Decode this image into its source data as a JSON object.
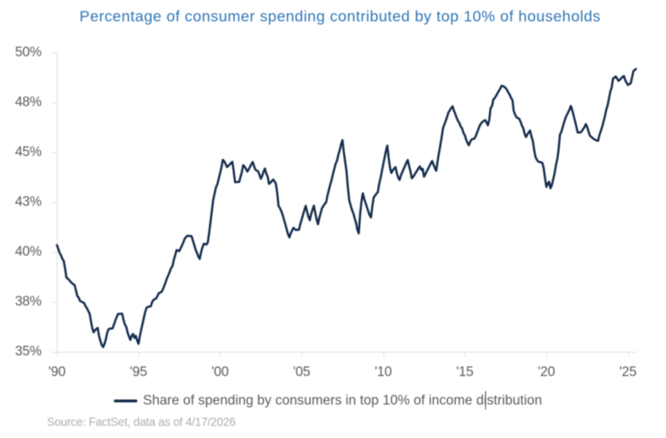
{
  "chart_data": {
    "type": "line",
    "title": "Percentage of consumer spending contributed by top 10% of households",
    "xlabel": "",
    "ylabel": "",
    "grid": false,
    "x_axis": {
      "range": [
        1990,
        2025.5
      ],
      "ticks": [
        {
          "t": 1990,
          "label": "'90"
        },
        {
          "t": 1995,
          "label": "'95"
        },
        {
          "t": 2000,
          "label": "'00"
        },
        {
          "t": 2005,
          "label": "'05"
        },
        {
          "t": 2010,
          "label": "'10"
        },
        {
          "t": 2015,
          "label": "'15"
        },
        {
          "t": 2020,
          "label": "'20"
        },
        {
          "t": 2025,
          "label": "'25"
        }
      ]
    },
    "y_axis": {
      "range": [
        35,
        50
      ],
      "unit": "%",
      "ticks": [
        {
          "v": 50,
          "label": "50%"
        },
        {
          "v": 47.5,
          "label": "48%"
        },
        {
          "v": 45,
          "label": "45%"
        },
        {
          "v": 42.5,
          "label": "43%"
        },
        {
          "v": 40,
          "label": "40%"
        },
        {
          "v": 37.5,
          "label": "38%"
        },
        {
          "v": 35,
          "label": "35%"
        }
      ]
    },
    "legend": {
      "position": "bottom",
      "label": "Share of spending by consumers in top 10% of income distribution"
    },
    "series": [
      {
        "name": "Share of spending by consumers in top 10% of income distribution",
        "color": "#122A4A",
        "x": [
          1990.0,
          1990.083,
          1990.167,
          1990.25,
          1990.333,
          1990.417,
          1990.5,
          1990.583,
          1990.667,
          1990.75,
          1990.833,
          1990.917,
          1991.0,
          1991.083,
          1991.167,
          1991.25,
          1991.333,
          1991.417,
          1991.5,
          1991.583,
          1991.667,
          1991.75,
          1991.833,
          1991.917,
          1992.0,
          1992.083,
          1992.167,
          1992.25,
          1992.333,
          1992.417,
          1992.5,
          1992.583,
          1992.667,
          1992.75,
          1992.833,
          1992.917,
          1993.0,
          1993.083,
          1993.167,
          1993.25,
          1993.333,
          1993.417,
          1993.5,
          1993.583,
          1993.667,
          1993.75,
          1993.833,
          1993.917,
          1994.0,
          1994.083,
          1994.167,
          1994.25,
          1994.333,
          1994.417,
          1994.5,
          1994.583,
          1994.667,
          1994.75,
          1994.833,
          1994.917,
          1995.0,
          1995.083,
          1995.167,
          1995.25,
          1995.333,
          1995.417,
          1995.5,
          1995.583,
          1995.667,
          1995.75,
          1995.833,
          1995.917,
          1996.0,
          1996.083,
          1996.167,
          1996.25,
          1996.333,
          1996.417,
          1996.5,
          1996.583,
          1996.667,
          1996.75,
          1996.833,
          1996.917,
          1997.0,
          1997.083,
          1997.167,
          1997.25,
          1997.333,
          1997.417,
          1997.5,
          1997.583,
          1997.667,
          1997.75,
          1997.833,
          1997.917,
          1998.0,
          1998.083,
          1998.167,
          1998.25,
          1998.333,
          1998.417,
          1998.5,
          1998.583,
          1998.667,
          1998.75,
          1998.833,
          1998.917,
          1999.0,
          1999.083,
          1999.167,
          1999.25,
          1999.333,
          1999.417,
          1999.5,
          1999.583,
          1999.667,
          1999.75,
          1999.833,
          1999.917,
          2000.0,
          2000.083,
          2000.167,
          2000.25,
          2000.333,
          2000.417,
          2000.5,
          2000.583,
          2000.667,
          2000.75,
          2000.833,
          2000.917,
          2001.0,
          2001.083,
          2001.167,
          2001.25,
          2001.333,
          2001.417,
          2001.5,
          2001.583,
          2001.667,
          2001.75,
          2001.833,
          2001.917,
          2002.0,
          2002.083,
          2002.167,
          2002.25,
          2002.333,
          2002.417,
          2002.5,
          2002.583,
          2002.667,
          2002.75,
          2002.833,
          2002.917,
          2003.0,
          2003.083,
          2003.167,
          2003.25,
          2003.333,
          2003.417,
          2003.5,
          2003.583,
          2003.667,
          2003.75,
          2003.833,
          2003.917,
          2004.0,
          2004.083,
          2004.167,
          2004.25,
          2004.333,
          2004.417,
          2004.5,
          2004.583,
          2004.667,
          2004.75,
          2004.833,
          2004.917,
          2005.0,
          2005.083,
          2005.167,
          2005.25,
          2005.333,
          2005.417,
          2005.5,
          2005.583,
          2005.667,
          2005.75,
          2005.833,
          2005.917,
          2006.0,
          2006.083,
          2006.167,
          2006.25,
          2006.333,
          2006.417,
          2006.5,
          2006.583,
          2006.667,
          2006.75,
          2006.833,
          2006.917,
          2007.0,
          2007.083,
          2007.167,
          2007.25,
          2007.333,
          2007.417,
          2007.5,
          2007.583,
          2007.667,
          2007.75,
          2007.833,
          2007.917,
          2008.0,
          2008.083,
          2008.167,
          2008.25,
          2008.333,
          2008.417,
          2008.5,
          2008.583,
          2008.667,
          2008.75,
          2008.833,
          2008.917,
          2009.0,
          2009.083,
          2009.167,
          2009.25,
          2009.333,
          2009.417,
          2009.5,
          2009.583,
          2009.667,
          2009.75,
          2009.833,
          2009.917,
          2010.0,
          2010.083,
          2010.167,
          2010.25,
          2010.333,
          2010.417,
          2010.5,
          2010.583,
          2010.667,
          2010.75,
          2010.833,
          2010.917,
          2011.0,
          2011.083,
          2011.167,
          2011.25,
          2011.333,
          2011.417,
          2011.5,
          2011.583,
          2011.667,
          2011.75,
          2011.833,
          2011.917,
          2012.0,
          2012.083,
          2012.167,
          2012.25,
          2012.333,
          2012.417,
          2012.5,
          2012.583,
          2012.667,
          2012.75,
          2012.833,
          2012.917,
          2013.0,
          2013.083,
          2013.167,
          2013.25,
          2013.333,
          2013.417,
          2013.5,
          2013.583,
          2013.667,
          2013.75,
          2013.833,
          2013.917,
          2014.0,
          2014.083,
          2014.167,
          2014.25,
          2014.333,
          2014.417,
          2014.5,
          2014.583,
          2014.667,
          2014.75,
          2014.833,
          2014.917,
          2015.0,
          2015.083,
          2015.167,
          2015.25,
          2015.333,
          2015.417,
          2015.5,
          2015.583,
          2015.667,
          2015.75,
          2015.833,
          2015.917,
          2016.0,
          2016.083,
          2016.167,
          2016.25,
          2016.333,
          2016.417,
          2016.5,
          2016.583,
          2016.667,
          2016.75,
          2016.833,
          2016.917,
          2017.0,
          2017.083,
          2017.167,
          2017.25,
          2017.333,
          2017.417,
          2017.5,
          2017.583,
          2017.667,
          2017.75,
          2017.833,
          2017.917,
          2018.0,
          2018.083,
          2018.167,
          2018.25,
          2018.333,
          2018.417,
          2018.5,
          2018.583,
          2018.667,
          2018.75,
          2018.833,
          2018.917,
          2019.0,
          2019.083,
          2019.167,
          2019.25,
          2019.333,
          2019.417,
          2019.5,
          2019.583,
          2019.667,
          2019.75,
          2019.833,
          2019.917,
          2020.0,
          2020.083,
          2020.167,
          2020.25,
          2020.333,
          2020.417,
          2020.5,
          2020.583,
          2020.667,
          2020.75,
          2020.833,
          2020.917,
          2021.0,
          2021.083,
          2021.167,
          2021.25,
          2021.333,
          2021.417,
          2021.5,
          2021.583,
          2021.667,
          2021.75,
          2021.833,
          2021.917,
          2022.0,
          2022.083,
          2022.167,
          2022.25,
          2022.333,
          2022.417,
          2022.5,
          2022.583,
          2022.667,
          2022.75,
          2022.833,
          2022.917,
          2023.0,
          2023.083,
          2023.167,
          2023.25,
          2023.333,
          2023.417,
          2023.5,
          2023.583,
          2023.667,
          2023.75,
          2023.833,
          2023.917,
          2024.0,
          2024.083,
          2024.167,
          2024.25,
          2024.333,
          2024.417,
          2024.5,
          2024.583,
          2024.667,
          2024.75,
          2024.833,
          2024.917,
          2025.0,
          2025.083,
          2025.167,
          2025.25,
          2025.333,
          2025.417,
          2025.48
        ],
        "values": [
          40.35,
          40.16,
          39.96,
          39.84,
          39.66,
          39.56,
          39.18,
          38.72,
          38.67,
          38.6,
          38.52,
          38.45,
          38.39,
          38.35,
          38.07,
          37.8,
          37.72,
          37.55,
          37.52,
          37.48,
          37.45,
          37.29,
          37.2,
          37.05,
          36.93,
          36.55,
          36.18,
          35.98,
          36.08,
          36.15,
          36.2,
          35.78,
          35.55,
          35.34,
          35.24,
          35.4,
          35.63,
          35.96,
          36.14,
          36.16,
          36.17,
          36.18,
          36.38,
          36.57,
          36.76,
          36.9,
          36.9,
          36.91,
          36.91,
          36.6,
          36.37,
          36.25,
          35.96,
          35.77,
          35.6,
          35.8,
          35.9,
          35.7,
          35.8,
          35.57,
          35.4,
          35.79,
          36.12,
          36.41,
          36.72,
          37.02,
          37.22,
          37.25,
          37.27,
          37.28,
          37.49,
          37.6,
          37.64,
          37.68,
          37.81,
          37.95,
          37.97,
          38.01,
          38.14,
          38.32,
          38.5,
          38.7,
          38.85,
          39.02,
          39.2,
          39.3,
          39.62,
          39.85,
          40.1,
          40.08,
          40.05,
          40.19,
          40.34,
          40.49,
          40.68,
          40.76,
          40.82,
          40.81,
          40.81,
          40.8,
          40.58,
          40.36,
          40.12,
          39.96,
          39.78,
          39.66,
          39.99,
          40.23,
          40.42,
          40.4,
          40.38,
          40.5,
          40.99,
          41.54,
          42.09,
          42.64,
          42.95,
          43.25,
          43.4,
          43.68,
          43.96,
          44.24,
          44.63,
          44.56,
          44.44,
          44.27,
          44.31,
          44.39,
          44.46,
          44.53,
          44.08,
          43.51,
          43.51,
          43.52,
          43.52,
          43.76,
          44.01,
          44.36,
          44.29,
          44.18,
          44.04,
          44.14,
          44.27,
          44.4,
          44.52,
          44.31,
          44.13,
          44.09,
          44.05,
          43.87,
          43.68,
          43.83,
          44.04,
          44.19,
          43.93,
          43.79,
          43.42,
          43.48,
          43.56,
          43.64,
          43.55,
          43.44,
          42.99,
          42.32,
          42.21,
          42.06,
          41.87,
          41.63,
          41.39,
          41.14,
          40.9,
          40.74,
          40.94,
          41.09,
          41.22,
          41.15,
          41.11,
          41.12,
          41.12,
          41.4,
          41.63,
          41.87,
          42.11,
          42.32,
          42.03,
          41.77,
          41.6,
          41.91,
          42.13,
          42.33,
          41.97,
          41.65,
          41.4,
          41.71,
          41.96,
          42.21,
          42.32,
          42.42,
          42.5,
          42.84,
          43.11,
          43.38,
          43.61,
          43.91,
          44.17,
          44.43,
          44.58,
          44.89,
          45.11,
          45.4,
          45.62,
          45.02,
          44.53,
          44.05,
          43.24,
          42.6,
          42.35,
          42.12,
          41.95,
          41.7,
          41.47,
          41.12,
          40.94,
          41.89,
          42.54,
          42.95,
          42.67,
          42.47,
          42.26,
          42.05,
          41.85,
          41.74,
          42.31,
          42.75,
          42.83,
          42.93,
          43.0,
          43.41,
          43.7,
          44.06,
          44.4,
          44.74,
          45.08,
          45.34,
          44.72,
          44.23,
          43.97,
          44.1,
          44.19,
          44.26,
          43.97,
          43.74,
          43.62,
          43.85,
          44.01,
          44.17,
          44.32,
          44.48,
          44.62,
          44.32,
          44.06,
          43.7,
          43.77,
          43.88,
          43.99,
          44.1,
          44.22,
          44.3,
          44.12,
          44.18,
          43.78,
          43.91,
          44.05,
          44.18,
          44.32,
          44.45,
          44.57,
          44.38,
          44.21,
          44.08,
          44.57,
          44.97,
          45.37,
          45.77,
          46.23,
          46.4,
          46.59,
          46.79,
          47.01,
          47.11,
          47.23,
          47.31,
          47.09,
          46.93,
          46.73,
          46.58,
          46.47,
          46.3,
          46.2,
          45.98,
          45.86,
          45.64,
          45.47,
          45.36,
          45.54,
          45.65,
          45.67,
          45.69,
          45.81,
          45.99,
          46.17,
          46.35,
          46.46,
          46.53,
          46.58,
          46.62,
          46.5,
          46.36,
          46.65,
          47.23,
          47.32,
          47.66,
          47.72,
          47.84,
          47.96,
          48.08,
          48.19,
          48.34,
          48.32,
          48.29,
          48.23,
          48.14,
          48.0,
          47.9,
          47.73,
          47.63,
          47.07,
          46.9,
          46.76,
          46.72,
          46.69,
          46.54,
          46.35,
          46.21,
          45.93,
          45.77,
          45.9,
          46.0,
          46.1,
          45.81,
          45.58,
          45.13,
          44.77,
          44.63,
          44.54,
          44.52,
          44.5,
          44.48,
          44.22,
          43.71,
          43.27,
          43.43,
          43.53,
          43.2,
          43.35,
          43.65,
          43.94,
          44.36,
          44.65,
          45.16,
          45.9,
          46.03,
          46.27,
          46.5,
          46.72,
          46.87,
          47.01,
          47.15,
          47.33,
          47.12,
          46.85,
          46.58,
          46.31,
          46.0,
          46.0,
          46.0,
          46.06,
          46.17,
          46.27,
          46.42,
          46.28,
          46.05,
          45.84,
          45.78,
          45.72,
          45.67,
          45.63,
          45.6,
          45.58,
          45.86,
          46.07,
          46.28,
          46.54,
          46.8,
          47.13,
          47.35,
          47.69,
          48.05,
          48.25,
          48.7,
          48.75,
          48.81,
          48.71,
          48.59,
          48.64,
          48.71,
          48.79,
          48.83,
          48.62,
          48.49,
          48.38,
          48.43,
          48.46,
          48.76,
          49.08,
          49.13,
          49.19
        ]
      }
    ]
  },
  "source_note": "Source: FactSet, data as of 4/17/2026",
  "text_cursor": {
    "present": true,
    "location": "in legend label between 'di' and 'stribution'"
  },
  "colors": {
    "title": "#2E74B5",
    "line": "#122A4A",
    "axis": "#D9D9D9",
    "tick_labels": "#595959",
    "legend_text": "#595959",
    "source_text": "#ACACAC",
    "background": "#FFFFFF",
    "caret": "#2F2F2F"
  }
}
